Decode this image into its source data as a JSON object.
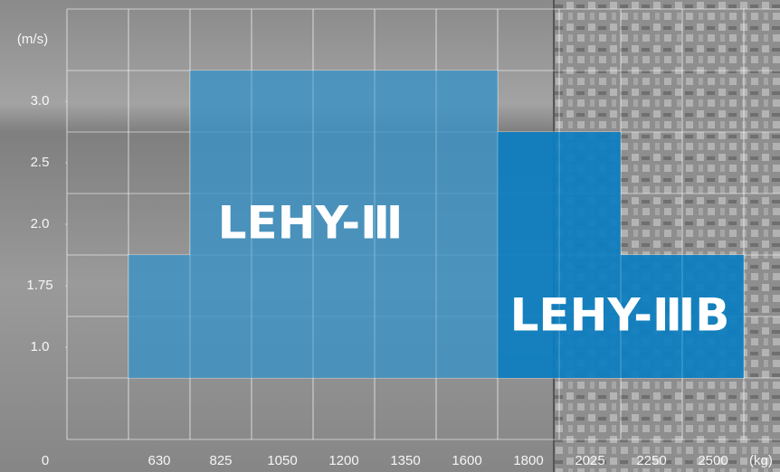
{
  "chart_data": {
    "type": "region",
    "x_label": "(kg)",
    "y_label": "(m/s)",
    "origin_label": "0",
    "categories": [
      "630",
      "825",
      "1050",
      "1200",
      "1350",
      "1600",
      "1800",
      "2025",
      "2250",
      "2500"
    ],
    "yticks": [
      {
        "value": 1.0,
        "label": "1.0"
      },
      1.75,
      {
        "value": 2.0,
        "label": "2.0"
      },
      2.5,
      {
        "value": 3.0,
        "label": "3.0"
      }
    ],
    "series": [
      {
        "name": "LEHY-Ⅲ",
        "color": "#3b93c6",
        "values": [
          1.75,
          3.0,
          3.0,
          3.0,
          3.0,
          3.0,
          null,
          null,
          null,
          null
        ]
      },
      {
        "name": "LEHY-ⅢB",
        "color": "#0a7ec0",
        "values": [
          null,
          null,
          null,
          null,
          null,
          null,
          2.5,
          2.5,
          1.75,
          1.75
        ]
      }
    ]
  }
}
